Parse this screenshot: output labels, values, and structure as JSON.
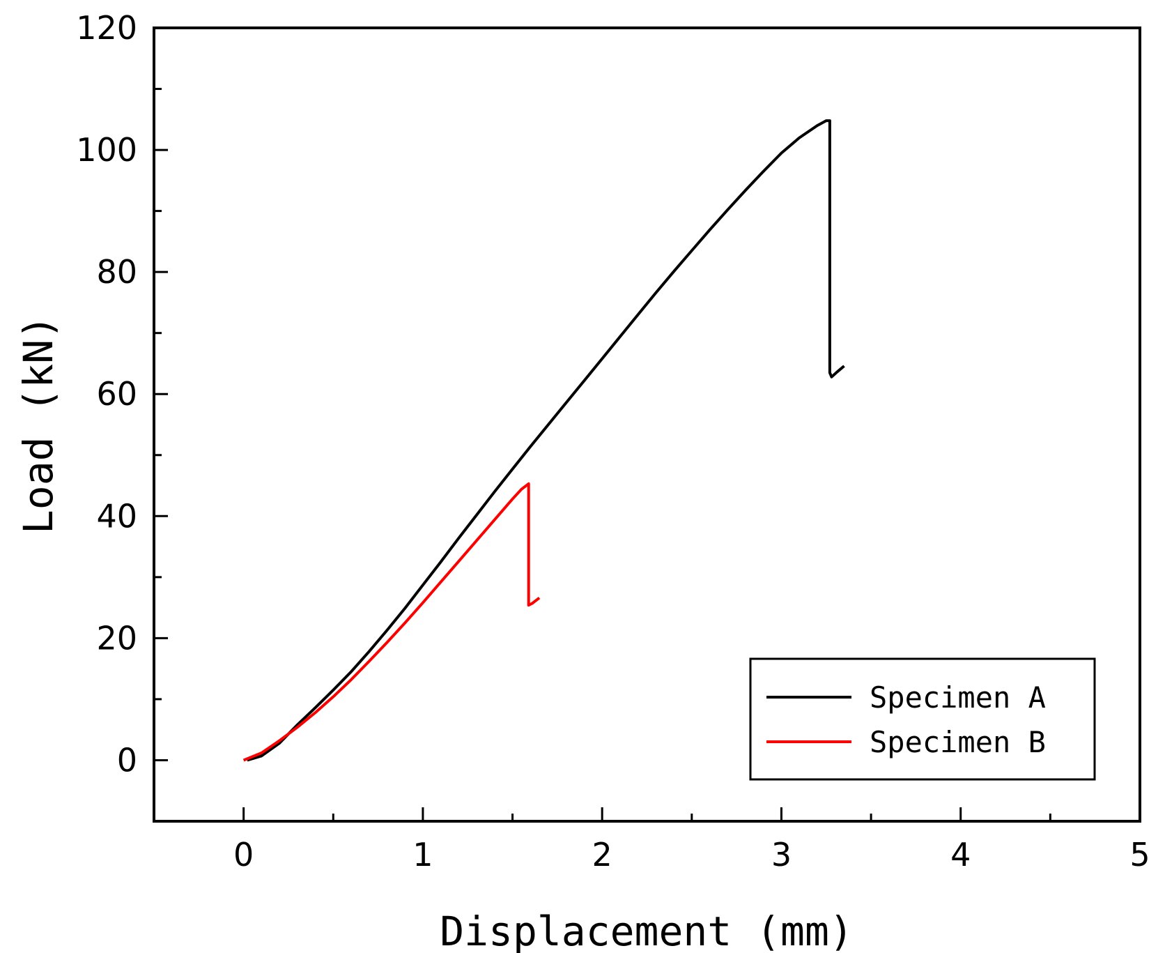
{
  "chart_data": {
    "type": "line",
    "title": "",
    "xlabel": "Displacement (mm)",
    "ylabel": "Load (kN)",
    "xlim": [
      -0.5,
      5
    ],
    "ylim": [
      -10,
      120
    ],
    "xticks": [
      0,
      1,
      2,
      3,
      4,
      5
    ],
    "xtick_labels": [
      "0",
      "1",
      "2",
      "3",
      "4",
      "5"
    ],
    "xminor": [
      0.5,
      1.5,
      2.5,
      3.5,
      4.5
    ],
    "yticks": [
      0,
      20,
      40,
      60,
      80,
      100,
      120
    ],
    "ytick_labels": [
      "0",
      "20",
      "40",
      "60",
      "80",
      "100",
      "120"
    ],
    "yminor": [
      10,
      30,
      50,
      70,
      90,
      110
    ],
    "grid": false,
    "legend_position": "bottom-right",
    "series": [
      {
        "name": "Specimen A",
        "color": "#000000",
        "points": [
          [
            0.02,
            0
          ],
          [
            0.1,
            0.7
          ],
          [
            0.2,
            2.8
          ],
          [
            0.3,
            5.8
          ],
          [
            0.4,
            8.6
          ],
          [
            0.5,
            11.5
          ],
          [
            0.6,
            14.5
          ],
          [
            0.7,
            17.8
          ],
          [
            0.8,
            21.3
          ],
          [
            0.9,
            24.9
          ],
          [
            1.0,
            28.7
          ],
          [
            1.1,
            32.5
          ],
          [
            1.2,
            36.4
          ],
          [
            1.3,
            40.2
          ],
          [
            1.4,
            44.0
          ],
          [
            1.5,
            47.7
          ],
          [
            1.6,
            51.4
          ],
          [
            1.7,
            55.0
          ],
          [
            1.8,
            58.6
          ],
          [
            1.9,
            62.2
          ],
          [
            2.0,
            65.8
          ],
          [
            2.1,
            69.4
          ],
          [
            2.2,
            73.0
          ],
          [
            2.3,
            76.6
          ],
          [
            2.4,
            80.1
          ],
          [
            2.5,
            83.5
          ],
          [
            2.6,
            86.9
          ],
          [
            2.7,
            90.2
          ],
          [
            2.8,
            93.4
          ],
          [
            2.9,
            96.5
          ],
          [
            3.0,
            99.5
          ],
          [
            3.1,
            102.0
          ],
          [
            3.2,
            104.0
          ],
          [
            3.25,
            104.8
          ],
          [
            3.27,
            104.8
          ],
          [
            3.27,
            80.0
          ],
          [
            3.27,
            63.5
          ],
          [
            3.28,
            62.8
          ],
          [
            3.31,
            63.6
          ],
          [
            3.35,
            64.6
          ]
        ]
      },
      {
        "name": "Specimen B",
        "color": "#ff0000",
        "points": [
          [
            0.0,
            0
          ],
          [
            0.1,
            1.2
          ],
          [
            0.2,
            3.2
          ],
          [
            0.3,
            5.4
          ],
          [
            0.4,
            7.8
          ],
          [
            0.5,
            10.4
          ],
          [
            0.6,
            13.2
          ],
          [
            0.7,
            16.2
          ],
          [
            0.8,
            19.3
          ],
          [
            0.9,
            22.5
          ],
          [
            1.0,
            25.8
          ],
          [
            1.1,
            29.2
          ],
          [
            1.2,
            32.6
          ],
          [
            1.3,
            36.0
          ],
          [
            1.4,
            39.4
          ],
          [
            1.5,
            42.8
          ],
          [
            1.55,
            44.4
          ],
          [
            1.59,
            45.3
          ],
          [
            1.59,
            30.0
          ],
          [
            1.59,
            25.4
          ],
          [
            1.61,
            25.7
          ],
          [
            1.65,
            26.6
          ]
        ]
      }
    ]
  }
}
